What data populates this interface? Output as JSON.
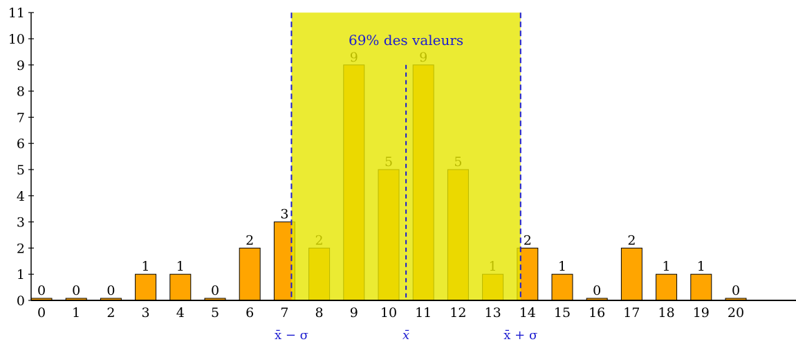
{
  "chart_data": {
    "type": "bar",
    "title": "",
    "xlabel": "",
    "ylabel": "",
    "categories": [
      "0",
      "1",
      "2",
      "3",
      "4",
      "5",
      "6",
      "7",
      "8",
      "9",
      "10",
      "11",
      "12",
      "13",
      "14",
      "15",
      "16",
      "17",
      "18",
      "19",
      "20"
    ],
    "values": [
      0,
      0,
      0,
      1,
      1,
      0,
      2,
      3,
      2,
      9,
      5,
      9,
      5,
      1,
      2,
      1,
      0,
      2,
      1,
      1,
      0
    ],
    "xlim": [
      0,
      21.5
    ],
    "ylim": [
      0,
      11
    ],
    "y_ticks": [
      "0",
      "1",
      "2",
      "3",
      "4",
      "5",
      "6",
      "7",
      "8",
      "9",
      "10",
      "11"
    ],
    "grid": false,
    "colors": {
      "bar_fill": "#ffa500",
      "bar_stroke": "#000000",
      "band_fill": "#e6e600",
      "band_opacity": 0.8,
      "annotation": "#1c1cd0"
    },
    "mean": 10.5,
    "sigma": 3.3,
    "band_label": "69% des valeurs",
    "mean_label": "x̄",
    "lower_label": "x̄ − σ",
    "upper_label": "x̄ + σ"
  }
}
